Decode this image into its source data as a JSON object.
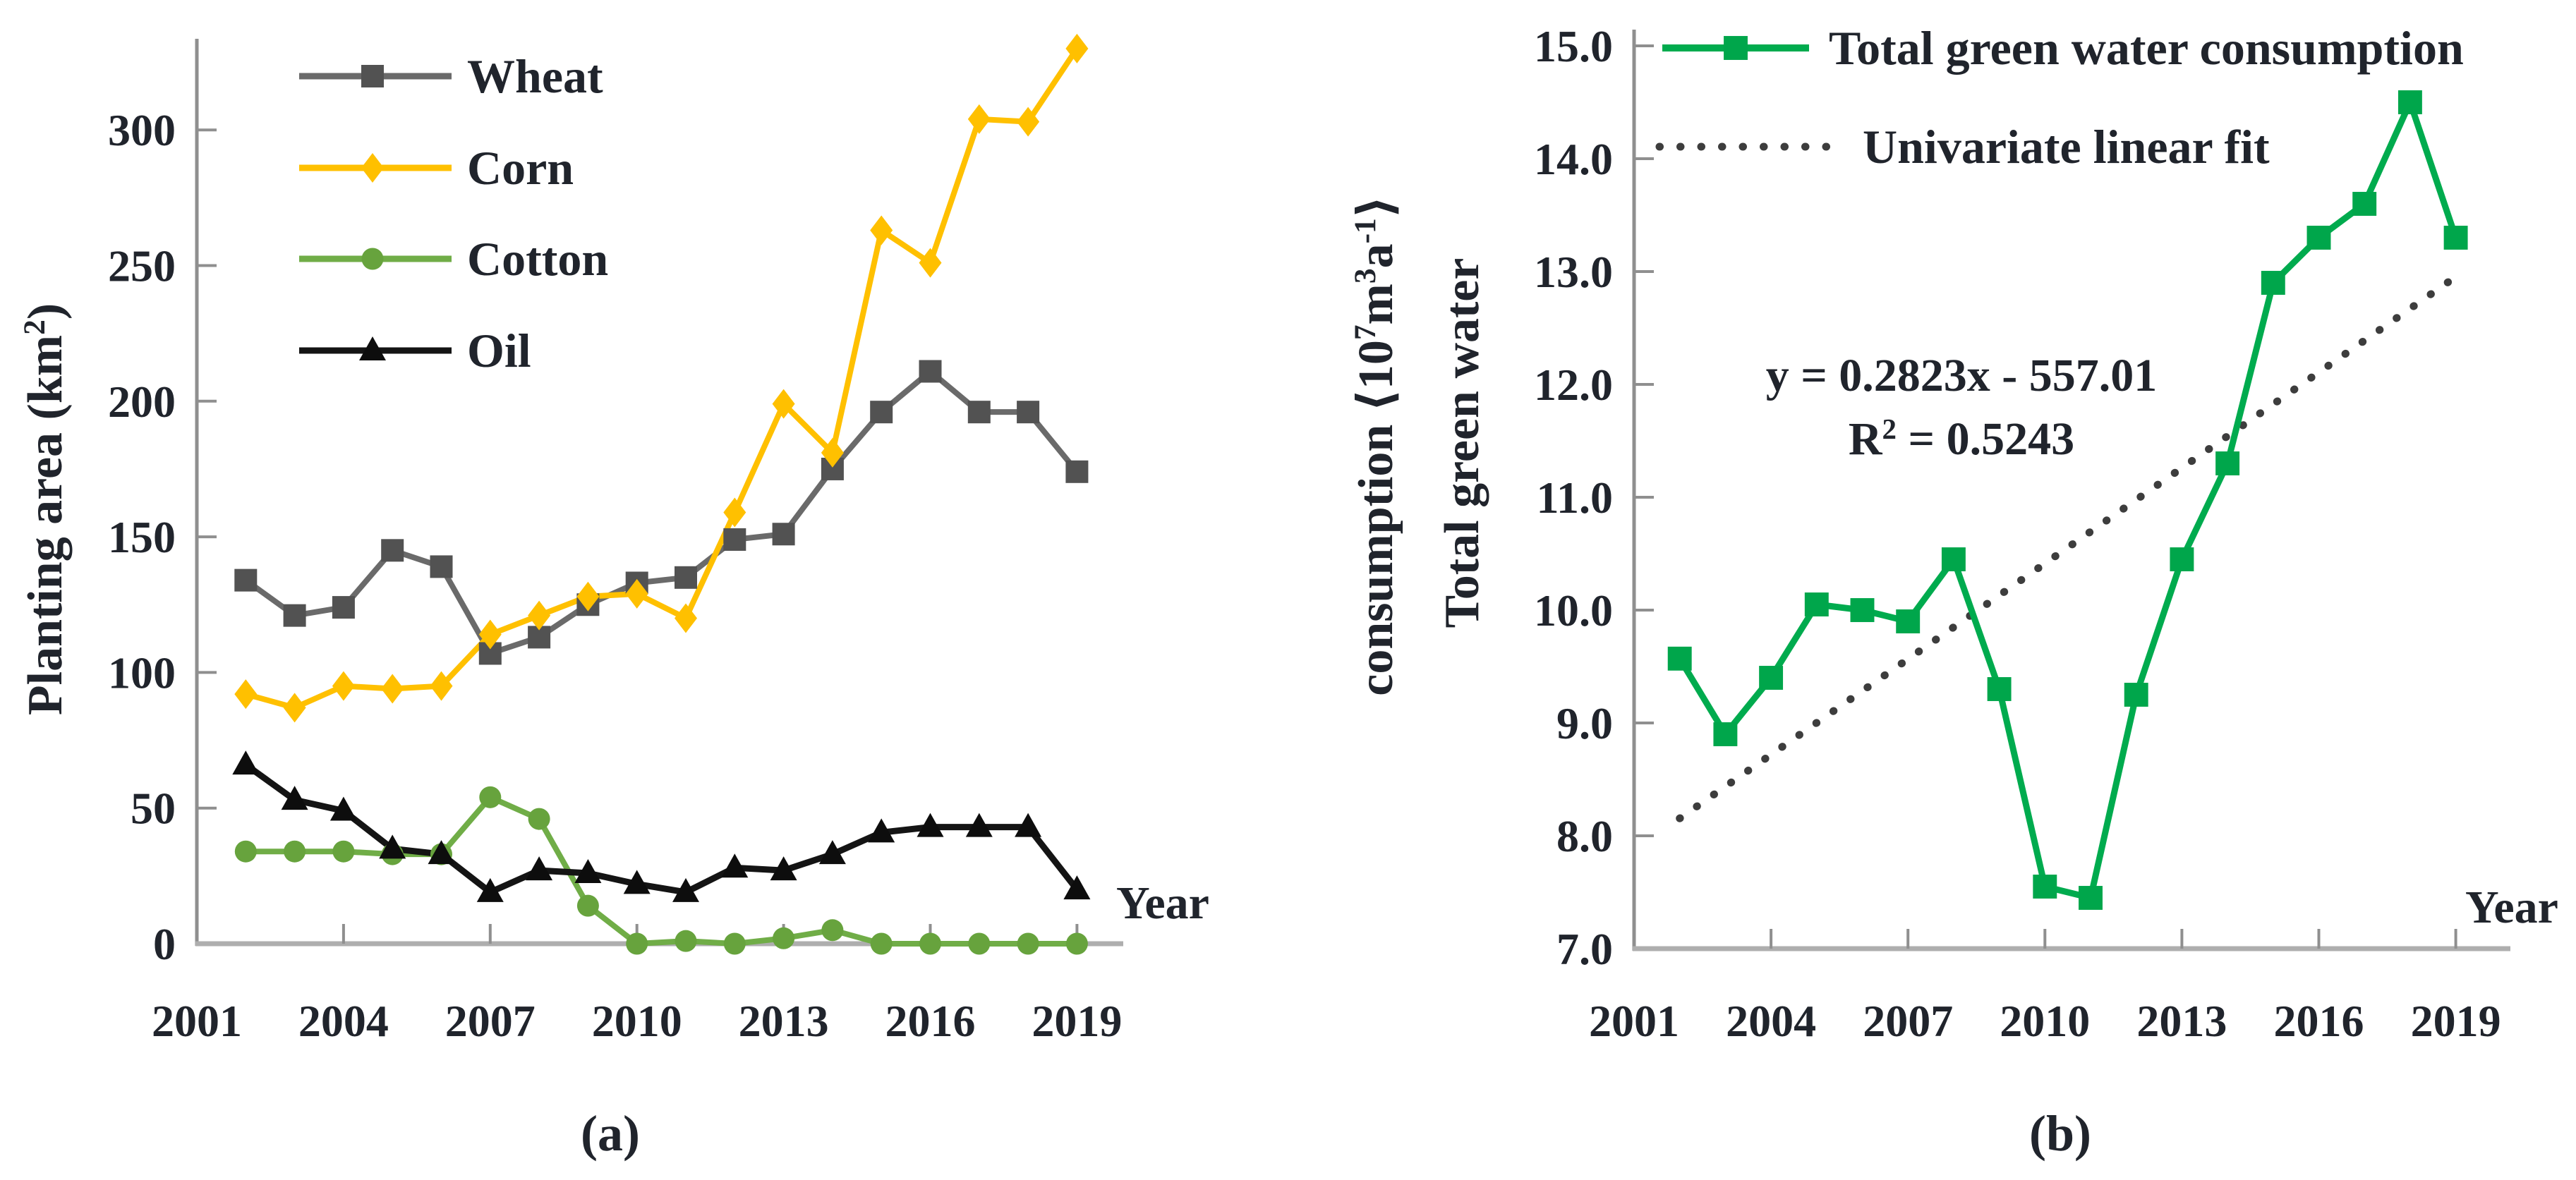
{
  "figure": {
    "captions": {
      "a": "(a)",
      "b": "(b)"
    }
  },
  "chart_data": [
    {
      "id": "a",
      "type": "line",
      "title": "",
      "xlabel": "Year",
      "ylabel": "Planting area (km²)",
      "x": [
        2002,
        2003,
        2004,
        2005,
        2006,
        2007,
        2008,
        2009,
        2010,
        2011,
        2012,
        2013,
        2014,
        2015,
        2016,
        2017,
        2018,
        2019
      ],
      "x_tick_labels": [
        "2001",
        "2004",
        "2007",
        "2010",
        "2013",
        "2016",
        "2019"
      ],
      "x_ticks": [
        2001,
        2004,
        2007,
        2010,
        2013,
        2016,
        2019
      ],
      "y_tick_labels": [
        "0",
        "50",
        "100",
        "150",
        "200",
        "250",
        "300"
      ],
      "ylim": [
        0,
        300
      ],
      "grid": false,
      "legend_position": "inside-top-left",
      "series": [
        {
          "name": "Wheat",
          "marker": "square",
          "line_color": "#6a6a6a",
          "marker_color": "#525252",
          "values": [
            134,
            121,
            124,
            145,
            139,
            107,
            113,
            125,
            133,
            135,
            149,
            151,
            175,
            196,
            211,
            196,
            196,
            174
          ]
        },
        {
          "name": "Corn",
          "marker": "diamond",
          "line_color": "#ffc000",
          "marker_color": "#ffc000",
          "values": [
            92,
            87,
            95,
            94,
            95,
            114,
            121,
            128,
            129,
            120,
            159,
            199,
            181,
            263,
            251,
            304,
            303,
            330
          ]
        },
        {
          "name": "Cotton",
          "marker": "circle",
          "line_color": "#70ad47",
          "marker_color": "#67a33d",
          "values": [
            34,
            34,
            34,
            33,
            33,
            54,
            46,
            14,
            0,
            1,
            0,
            2,
            5,
            0,
            0,
            0,
            0,
            0
          ]
        },
        {
          "name": "Oil",
          "marker": "triangle",
          "line_color": "#141414",
          "marker_color": "#0d0d0d",
          "values": [
            66,
            53,
            49,
            35,
            33,
            19,
            27,
            26,
            22,
            19,
            28,
            27,
            33,
            41,
            43,
            43,
            43,
            20
          ]
        }
      ]
    },
    {
      "id": "b",
      "type": "line",
      "title": "",
      "xlabel": "Year",
      "ylabel_line1": "Total green water",
      "ylabel_line2": "consumption ⟨10⁷m³a⁻¹⟩",
      "x": [
        2002,
        2003,
        2004,
        2005,
        2006,
        2007,
        2008,
        2009,
        2010,
        2011,
        2012,
        2013,
        2014,
        2015,
        2016,
        2017,
        2018,
        2019
      ],
      "x_tick_labels": [
        "2001",
        "2004",
        "2007",
        "2010",
        "2013",
        "2016",
        "2019"
      ],
      "x_ticks": [
        2001,
        2004,
        2007,
        2010,
        2013,
        2016,
        2019
      ],
      "y_tick_labels": [
        "7.0",
        "8.0",
        "9.0",
        "10.0",
        "11.0",
        "12.0",
        "13.0",
        "14.0",
        "15.0"
      ],
      "ylim": [
        7.0,
        15.0
      ],
      "grid": false,
      "legend_position": "inside-top-left",
      "series": [
        {
          "name": "Total green water consumption",
          "marker": "square",
          "line_color": "#00ab4e",
          "marker_color": "#00a64b",
          "values": [
            9.57,
            8.9,
            9.4,
            10.05,
            10.0,
            9.9,
            10.45,
            9.3,
            7.55,
            7.45,
            9.25,
            10.45,
            11.3,
            12.9,
            13.3,
            13.6,
            14.5,
            13.3
          ]
        },
        {
          "name": "Univariate linear fit",
          "style": "dotted",
          "line_color": "#3d3d3d",
          "slope": 0.2823,
          "intercept": -557.01,
          "x_range": [
            2002,
            2019
          ]
        }
      ],
      "annotation": {
        "line1": "y = 0.2823x - 557.01",
        "line2": "R² = 0.5243"
      }
    }
  ]
}
